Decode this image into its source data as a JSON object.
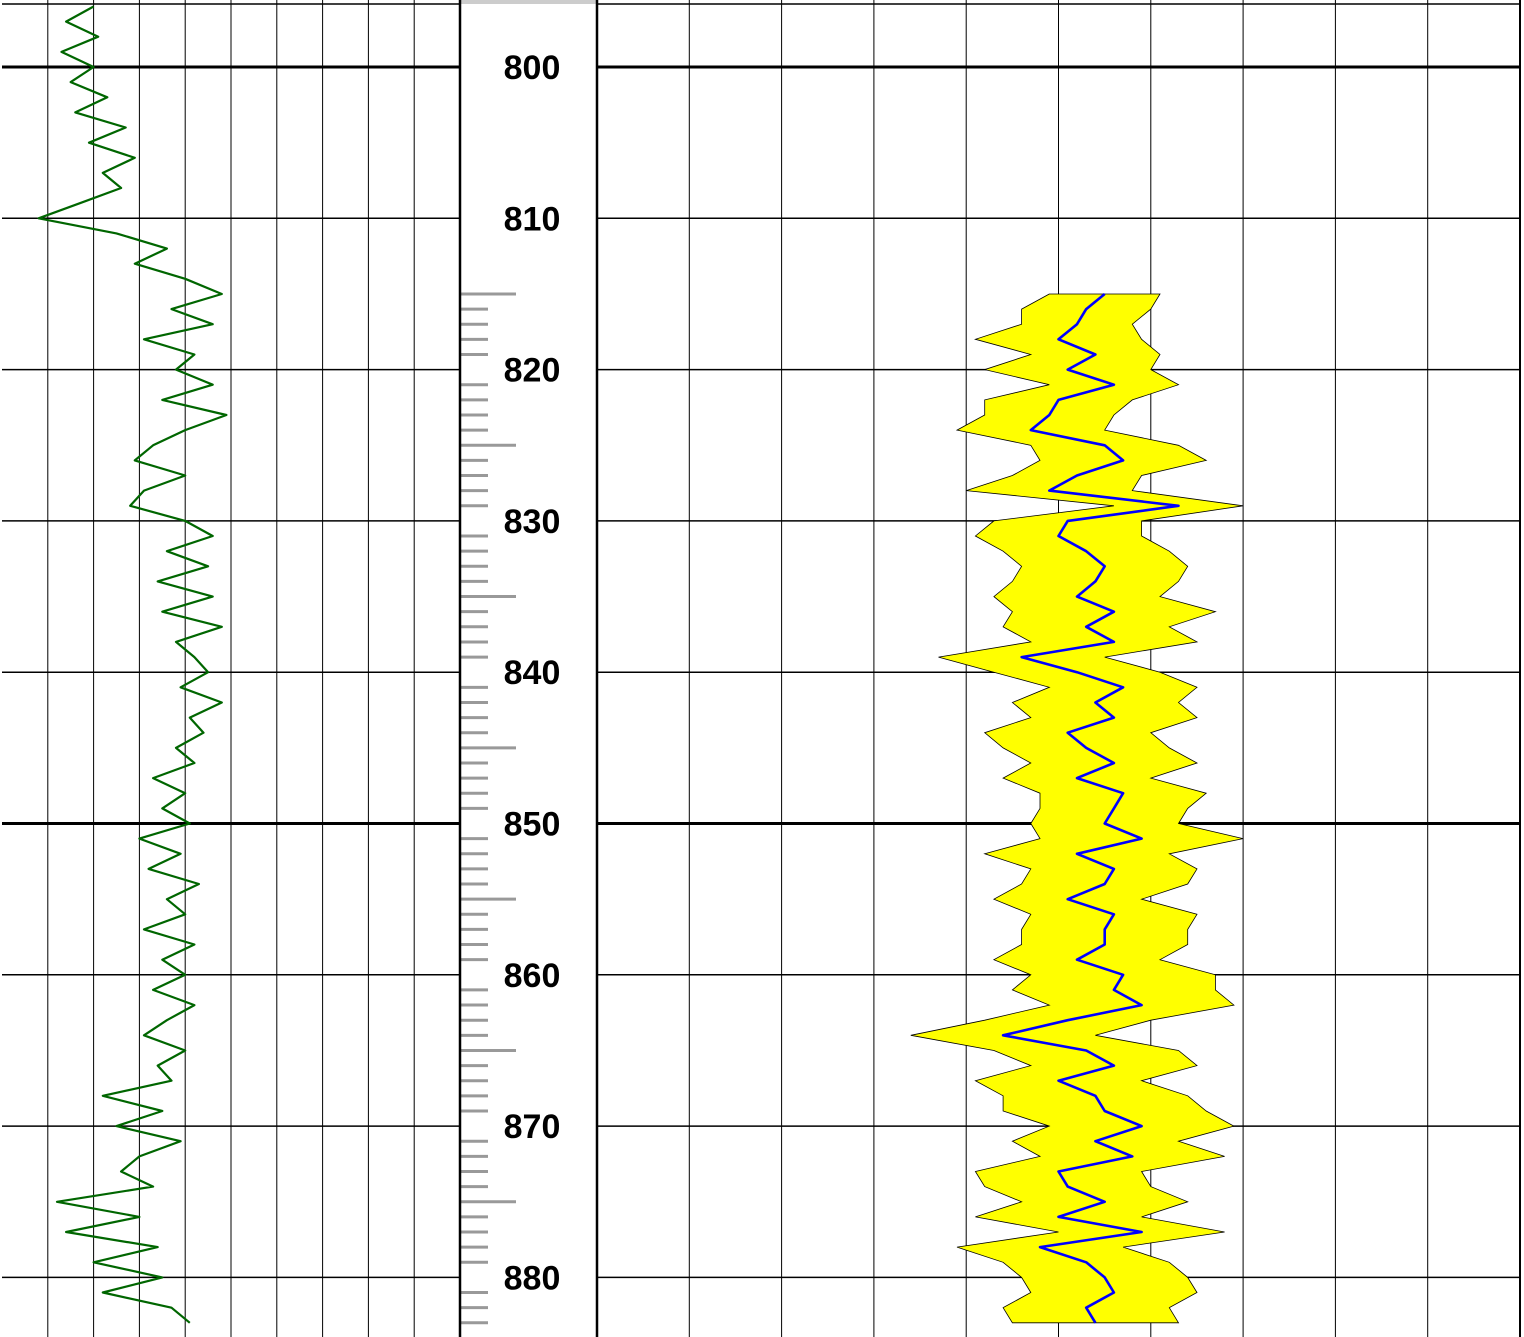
{
  "chart_data": [
    {
      "type": "line",
      "track": "left",
      "color": "#006600",
      "grid": true,
      "depth_range": [
        795.6,
        883.9
      ],
      "x_range": [
        0,
        10
      ],
      "series": [
        {
          "depth": [
            796,
            797,
            798,
            799,
            800,
            801,
            802,
            803,
            804,
            805,
            806,
            807,
            808,
            809,
            810,
            811,
            812,
            813,
            814,
            815,
            816,
            817,
            818,
            819,
            820,
            821,
            822,
            823,
            824,
            825,
            826,
            827,
            828,
            829,
            830,
            831,
            832,
            833,
            834,
            835,
            836,
            837,
            838,
            839,
            840,
            841,
            842,
            843,
            844,
            845,
            846,
            847,
            848,
            849,
            850,
            851,
            852,
            853,
            854,
            855,
            856,
            857,
            858,
            859,
            860,
            861,
            862,
            863,
            864,
            865,
            866,
            867,
            868,
            869,
            870,
            871,
            872,
            873,
            874,
            875,
            876,
            877,
            878,
            879,
            880,
            881,
            882,
            883
          ],
          "x": [
            2.0,
            1.4,
            2.1,
            1.3,
            2.0,
            1.5,
            2.3,
            1.6,
            2.7,
            1.9,
            2.9,
            2.2,
            2.6,
            1.7,
            0.8,
            2.5,
            3.6,
            2.9,
            4.0,
            4.8,
            3.7,
            4.6,
            3.1,
            4.2,
            3.8,
            4.6,
            3.5,
            4.9,
            4.0,
            3.3,
            2.9,
            4.0,
            3.1,
            2.8,
            4.0,
            4.6,
            3.6,
            4.5,
            3.4,
            4.6,
            3.5,
            4.8,
            3.8,
            4.2,
            4.5,
            3.9,
            4.8,
            4.1,
            4.4,
            3.8,
            4.2,
            3.3,
            4.0,
            3.5,
            4.1,
            3.0,
            3.9,
            3.2,
            4.3,
            3.6,
            4.0,
            3.1,
            4.2,
            3.5,
            4.0,
            3.3,
            4.2,
            3.6,
            3.1,
            4.0,
            3.4,
            3.7,
            2.2,
            3.5,
            2.5,
            3.9,
            3.0,
            2.6,
            3.3,
            1.2,
            3.0,
            1.4,
            3.4,
            2.0,
            3.5,
            2.2,
            3.7,
            4.1
          ]
        }
      ]
    },
    {
      "type": "area",
      "track": "right",
      "colors": {
        "curve": "#0000ff",
        "fill": "#ffff00",
        "edge": "#000000"
      },
      "grid": true,
      "depth_range": [
        795.6,
        883.9
      ],
      "x_range": [
        0,
        10
      ],
      "series": [
        {
          "depth": [
            815,
            816,
            817,
            818,
            819,
            820,
            821,
            822,
            823,
            824,
            825,
            826,
            827,
            828,
            829,
            830,
            831,
            832,
            833,
            834,
            835,
            836,
            837,
            838,
            839,
            840,
            841,
            842,
            843,
            844,
            845,
            846,
            847,
            848,
            849,
            850,
            851,
            852,
            853,
            854,
            855,
            856,
            857,
            858,
            859,
            860,
            861,
            862,
            863,
            864,
            865,
            866,
            867,
            868,
            869,
            870,
            871,
            872,
            873,
            874,
            875,
            876,
            877,
            878,
            879,
            880,
            881,
            882,
            883
          ],
          "x": [
            5.5,
            5.3,
            5.2,
            5.0,
            5.4,
            5.1,
            5.6,
            5.0,
            4.9,
            4.7,
            5.5,
            5.7,
            5.2,
            4.9,
            6.3,
            5.1,
            5.0,
            5.3,
            5.5,
            5.4,
            5.2,
            5.6,
            5.3,
            5.6,
            4.6,
            5.2,
            5.7,
            5.4,
            5.6,
            5.1,
            5.3,
            5.6,
            5.2,
            5.7,
            5.6,
            5.5,
            5.9,
            5.2,
            5.6,
            5.5,
            5.1,
            5.6,
            5.5,
            5.5,
            5.2,
            5.7,
            5.6,
            5.9,
            5.1,
            4.4,
            5.3,
            5.6,
            5.0,
            5.4,
            5.5,
            5.9,
            5.4,
            5.8,
            5.0,
            5.1,
            5.5,
            5.0,
            5.9,
            4.8,
            5.3,
            5.5,
            5.6,
            5.3,
            5.4
          ],
          "spread": [
            0.6,
            0.7,
            0.6,
            0.9,
            0.7,
            0.9,
            0.7,
            0.8,
            0.7,
            0.8,
            0.8,
            0.9,
            0.7,
            0.9,
            0.7,
            0.8,
            0.9,
            0.9,
            0.9,
            0.9,
            0.9,
            1.1,
            0.9,
            0.9,
            0.9,
            0.9,
            0.8,
            0.9,
            0.9,
            0.9,
            0.9,
            0.9,
            0.8,
            0.9,
            0.8,
            0.8,
            1.1,
            1.0,
            0.9,
            0.9,
            0.8,
            0.9,
            0.9,
            0.9,
            0.9,
            1.0,
            1.1,
            1.0,
            0.9,
            1.0,
            1.0,
            0.9,
            0.9,
            1.0,
            1.1,
            1.0,
            0.9,
            1.0,
            0.9,
            0.9,
            0.9,
            0.9,
            0.9,
            0.9,
            0.9,
            0.9,
            0.9,
            0.9,
            0.9
          ]
        }
      ]
    }
  ],
  "depth_track": {
    "unit_interval": 10,
    "labels": [
      "800",
      "810",
      "820",
      "830",
      "840",
      "850",
      "860",
      "870",
      "880"
    ],
    "tick_color": "#999999"
  }
}
